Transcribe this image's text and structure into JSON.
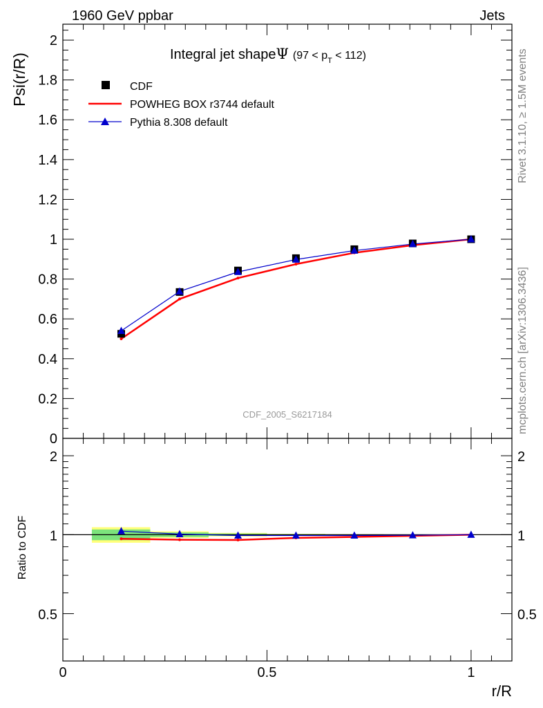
{
  "header": {
    "left": "1960 GeV ppbar",
    "right": "Jets"
  },
  "side": {
    "rivet": "Rivet 3.1.10, ≥ 1.5M events",
    "mcplots": "mcplots.cern.ch [arXiv:1306.3436]"
  },
  "colors": {
    "cdf": "#000000",
    "powheg": "#ff0000",
    "pythia": "#0000cc",
    "band_inner": "#7ce37c",
    "band_outer": "#ffff7a"
  },
  "chart_data": [
    {
      "type": "line",
      "title": "Integral jet shape",
      "title_symbol": "Ψ",
      "title_range": {
        "open": "(97 < p",
        "sub": "T",
        "close": " < 112)"
      },
      "ylabel": "Psi(r/R)",
      "watermark": "CDF_2005_S6217184",
      "xlim": [
        0,
        1.1
      ],
      "ylim": [
        0,
        2.08
      ],
      "yticks": [
        0,
        0.2,
        0.4,
        0.6,
        0.8,
        1,
        1.2,
        1.4,
        1.6,
        1.8,
        2
      ],
      "ytick_labels": [
        "0",
        "0.2",
        "0.4",
        "0.6",
        "0.8",
        "1",
        "1.2",
        "1.4",
        "1.6",
        "1.8",
        "2"
      ],
      "legend_position": "top-left",
      "x": [
        0.143,
        0.286,
        0.429,
        0.571,
        0.714,
        0.857,
        1.0
      ],
      "series": [
        {
          "name": "CDF",
          "style": "markers",
          "values": [
            0.525,
            0.735,
            0.843,
            0.905,
            0.95,
            0.979,
            1.0
          ]
        },
        {
          "name": "POWHEG BOX r3744 default",
          "style": "line",
          "values": [
            0.5,
            0.7,
            0.805,
            0.875,
            0.932,
            0.97,
            1.0
          ]
        },
        {
          "name": "Pythia 8.308 default",
          "style": "line-markers",
          "values": [
            0.54,
            0.738,
            0.836,
            0.898,
            0.943,
            0.976,
            1.0
          ]
        }
      ]
    },
    {
      "type": "line",
      "ylabel": "Ratio to CDF",
      "xlabel": "r/R",
      "xlim": [
        0,
        1.1
      ],
      "ylim": [
        0.33,
        2.33
      ],
      "yticks": [
        0.5,
        1,
        2
      ],
      "ytick_labels": [
        "0.5",
        "1",
        "2"
      ],
      "xticks": [
        0,
        0.5,
        1
      ],
      "xtick_labels": [
        "0",
        "0.5",
        "1"
      ],
      "x": [
        0.143,
        0.286,
        0.429,
        0.571,
        0.714,
        0.857,
        1.0
      ],
      "reference_band": {
        "x_edges": [
          0.071,
          0.214,
          0.357,
          0.5,
          0.643,
          0.786,
          0.929,
          1.071
        ],
        "inner_low": [
          0.953,
          0.98,
          0.99,
          0.995,
          0.997,
          0.998,
          1.0
        ],
        "inner_high": [
          1.047,
          1.02,
          1.01,
          1.005,
          1.003,
          1.002,
          1.0
        ],
        "outer_low": [
          0.932,
          0.972,
          0.985,
          0.992,
          0.995,
          0.997,
          1.0
        ],
        "outer_high": [
          1.068,
          1.03,
          1.016,
          1.008,
          1.005,
          1.003,
          1.0
        ]
      },
      "series": [
        {
          "name": "POWHEG BOX r3744 default",
          "values": [
            0.965,
            0.957,
            0.955,
            0.972,
            0.981,
            0.99,
            1.0
          ]
        },
        {
          "name": "Pythia 8.308 default",
          "values": [
            1.032,
            1.005,
            0.993,
            0.993,
            0.993,
            0.995,
            1.0
          ]
        }
      ]
    }
  ]
}
